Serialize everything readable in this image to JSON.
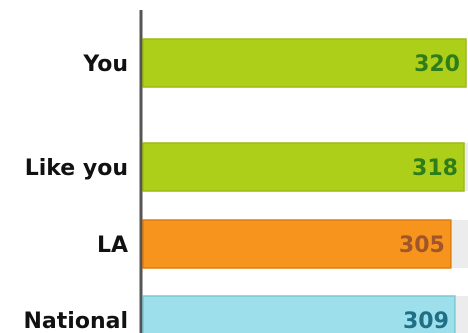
{
  "chart_data": {
    "type": "bar",
    "orientation": "horizontal",
    "categories": [
      "You",
      "Like you",
      "LA",
      "National"
    ],
    "values": [
      320,
      318,
      305,
      309
    ],
    "xlim": [
      0,
      320
    ],
    "grid": false,
    "legend": "none",
    "bar_colors": [
      "#aecf1a",
      "#aecf1a",
      "#f7941d",
      "#9ddfeb"
    ],
    "bar_border_colors": [
      "#9bbb12",
      "#9bbb12",
      "#e07d10",
      "#7cc9d8"
    ],
    "label_colors": [
      "#2e7d1a",
      "#2e7d1a",
      "#a0562a",
      "#1f6f86"
    ]
  }
}
